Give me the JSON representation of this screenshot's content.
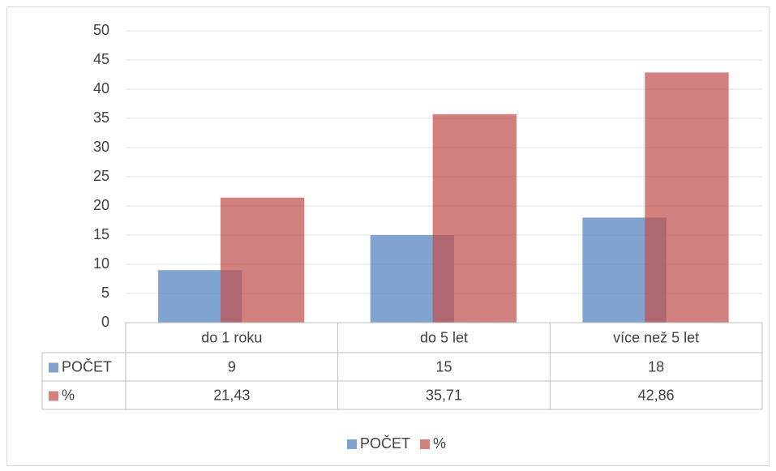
{
  "chart_data": {
    "type": "bar",
    "categories": [
      "do 1 roku",
      "do 5 let",
      "více než 5 let"
    ],
    "series": [
      {
        "name": "POČET",
        "color": "#4f81bd",
        "values": [
          9,
          15,
          18
        ]
      },
      {
        "name": "%",
        "color": "#c0504d",
        "values": [
          21.43,
          35.71,
          42.86
        ],
        "value_labels": [
          "21,43",
          "35,71",
          "42,86"
        ]
      }
    ],
    "ylim": [
      0,
      50
    ],
    "yticks": [
      0,
      5,
      10,
      15,
      20,
      25,
      30,
      35,
      40,
      45,
      50
    ],
    "grid": true,
    "legend": "bottom",
    "data_table": true
  }
}
